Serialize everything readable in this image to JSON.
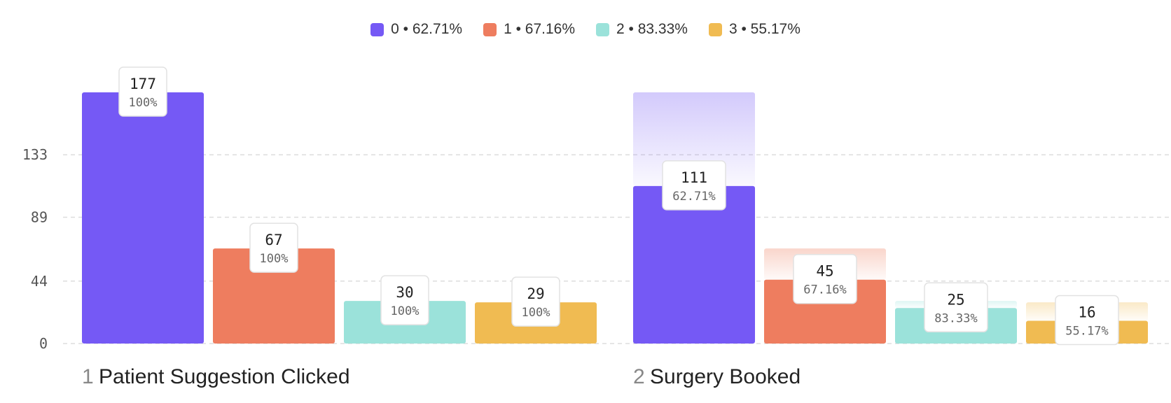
{
  "legend": [
    {
      "label": "0 • 62.71%",
      "color": "#7559f5"
    },
    {
      "label": "1 • 67.16%",
      "color": "#ee7d5f"
    },
    {
      "label": "2 • 83.33%",
      "color": "#9be2da"
    },
    {
      "label": "3 • 55.17%",
      "color": "#f0bb52"
    }
  ],
  "chart_data": {
    "type": "bar",
    "title": "",
    "ylabel": "",
    "ylim": [
      0,
      177
    ],
    "yticks": [
      0,
      44,
      89,
      133
    ],
    "series": [
      {
        "name": "0",
        "color": "#7559f5",
        "values": [
          177,
          111
        ],
        "percent_labels": [
          "100%",
          "62.71%"
        ]
      },
      {
        "name": "1",
        "color": "#ee7d5f",
        "values": [
          67,
          45
        ],
        "percent_labels": [
          "100%",
          "67.16%"
        ]
      },
      {
        "name": "2",
        "color": "#9be2da",
        "values": [
          30,
          25
        ],
        "percent_labels": [
          "100%",
          "83.33%"
        ]
      },
      {
        "name": "3",
        "color": "#f0bb52",
        "values": [
          29,
          16
        ],
        "percent_labels": [
          "100%",
          "55.17%"
        ]
      }
    ],
    "steps": [
      {
        "number": "1",
        "name": "Patient Suggestion Clicked"
      },
      {
        "number": "2",
        "name": "Surgery Booked"
      }
    ]
  }
}
